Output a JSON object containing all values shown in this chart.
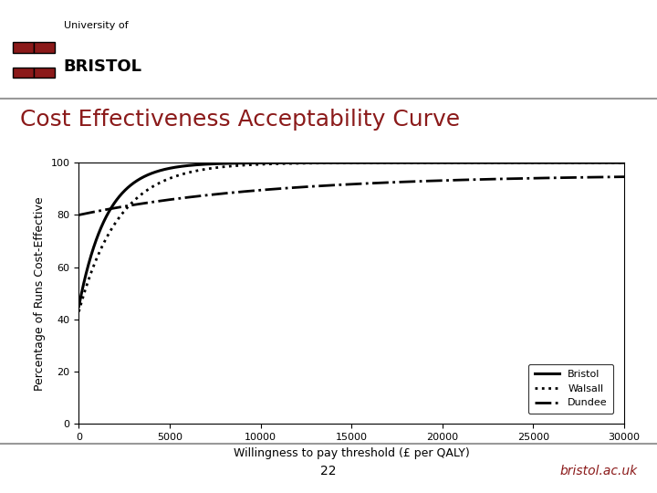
{
  "title": "Cost Effectiveness Acceptability Curve",
  "xlabel": "Willingness to pay threshold (£ per QALY)",
  "ylabel": "Percentage of Runs Cost-Effective",
  "xlim": [
    0,
    30000
  ],
  "ylim": [
    0,
    100
  ],
  "xticks": [
    0,
    5000,
    10000,
    15000,
    20000,
    25000,
    30000
  ],
  "yticks": [
    0,
    20,
    40,
    60,
    80,
    100
  ],
  "background_color": "#ffffff",
  "page_number": "22",
  "title_color": "#8B1A1A",
  "bristol_ac_uk_color": "#8B1A1A",
  "separator_color": "#999999",
  "logo_rect_color": "#8B1A1A",
  "bristol_curve": {
    "y0": 45,
    "rate": 0.00065,
    "ymax": 100
  },
  "walsall_curve": {
    "y0": 43,
    "rate": 0.00045,
    "ymax": 100
  },
  "dundee_curve": {
    "y0": 80,
    "rate": 9.5e-05,
    "ymax": 95.5
  }
}
